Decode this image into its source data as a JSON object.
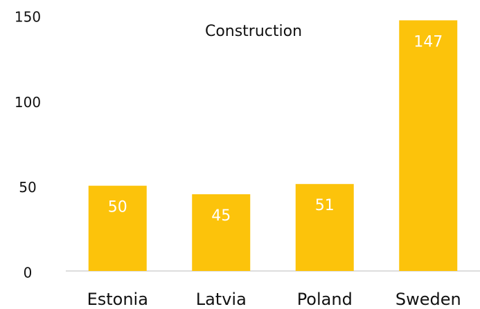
{
  "chart_data": {
    "type": "bar",
    "title": "Construction",
    "categories": [
      "Estonia",
      "Latvia",
      "Poland",
      "Sweden"
    ],
    "values": [
      50,
      45,
      51,
      147
    ],
    "color": "#fcc30b",
    "ylim": [
      0,
      150
    ],
    "yticks": [
      0,
      50,
      100,
      150
    ]
  }
}
